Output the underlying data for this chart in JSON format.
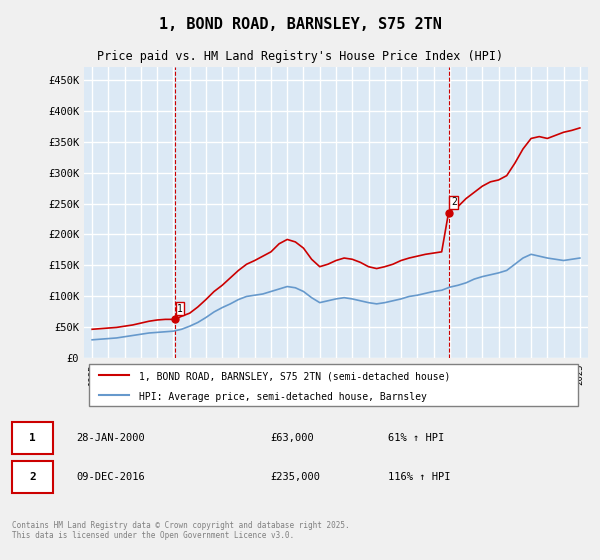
{
  "title": "1, BOND ROAD, BARNSLEY, S75 2TN",
  "subtitle": "Price paid vs. HM Land Registry's House Price Index (HPI)",
  "ylabel": "",
  "ylim": [
    0,
    470000
  ],
  "yticks": [
    0,
    50000,
    100000,
    150000,
    200000,
    250000,
    300000,
    350000,
    400000,
    450000
  ],
  "background_color": "#dce9f5",
  "plot_bg_color": "#dce9f5",
  "grid_color": "#ffffff",
  "sale1": {
    "date_num": 5.08,
    "price": 63000,
    "label": "1",
    "date_str": "28-JAN-2000"
  },
  "sale2": {
    "date_num": 21.92,
    "price": 235000,
    "label": "2",
    "date_str": "09-DEC-2016"
  },
  "legend_label_red": "1, BOND ROAD, BARNSLEY, S75 2TN (semi-detached house)",
  "legend_label_blue": "HPI: Average price, semi-detached house, Barnsley",
  "annotation1": "28-JAN-2000    £63,000        61% ↑ HPI",
  "annotation2": "09-DEC-2016    £235,000      116% ↑ HPI",
  "footer": "Contains HM Land Registry data © Crown copyright and database right 2025.\nThis data is licensed under the Open Government Licence v3.0.",
  "red_color": "#cc0000",
  "blue_color": "#6699cc",
  "vline_color": "#cc0000",
  "hpi_red_line": {
    "x": [
      1995,
      1995.5,
      1996,
      1996.5,
      1997,
      1997.5,
      1998,
      1998.5,
      1999,
      1999.5,
      2000,
      2000.08,
      2000.5,
      2001,
      2001.5,
      2002,
      2002.5,
      2003,
      2003.5,
      2004,
      2004.5,
      2005,
      2005.5,
      2006,
      2006.5,
      2007,
      2007.5,
      2008,
      2008.5,
      2009,
      2009.5,
      2010,
      2010.5,
      2011,
      2011.5,
      2012,
      2012.5,
      2013,
      2013.5,
      2014,
      2014.5,
      2015,
      2015.5,
      2016,
      2016.5,
      2016.92,
      2017,
      2017.5,
      2018,
      2018.5,
      2019,
      2019.5,
      2020,
      2020.5,
      2021,
      2021.5,
      2022,
      2022.5,
      2023,
      2023.5,
      2024,
      2024.5,
      2025
    ],
    "y": [
      47000,
      48000,
      49000,
      50000,
      52000,
      54000,
      57000,
      60000,
      62000,
      63000,
      63000,
      63000,
      68000,
      73000,
      83000,
      95000,
      108000,
      118000,
      130000,
      142000,
      152000,
      158000,
      165000,
      172000,
      185000,
      192000,
      188000,
      178000,
      160000,
      148000,
      152000,
      158000,
      162000,
      160000,
      155000,
      148000,
      145000,
      148000,
      152000,
      158000,
      162000,
      165000,
      168000,
      170000,
      172000,
      235000,
      238000,
      245000,
      258000,
      268000,
      278000,
      285000,
      288000,
      295000,
      315000,
      338000,
      355000,
      358000,
      355000,
      360000,
      365000,
      368000,
      372000
    ]
  },
  "hpi_blue_line": {
    "x": [
      1995,
      1995.5,
      1996,
      1996.5,
      1997,
      1997.5,
      1998,
      1998.5,
      1999,
      1999.5,
      2000,
      2000.5,
      2001,
      2001.5,
      2002,
      2002.5,
      2003,
      2003.5,
      2004,
      2004.5,
      2005,
      2005.5,
      2006,
      2006.5,
      2007,
      2007.5,
      2008,
      2008.5,
      2009,
      2009.5,
      2010,
      2010.5,
      2011,
      2011.5,
      2012,
      2012.5,
      2013,
      2013.5,
      2014,
      2014.5,
      2015,
      2015.5,
      2016,
      2016.5,
      2017,
      2017.5,
      2018,
      2018.5,
      2019,
      2019.5,
      2020,
      2020.5,
      2021,
      2021.5,
      2022,
      2022.5,
      2023,
      2023.5,
      2024,
      2024.5,
      2025
    ],
    "y": [
      30000,
      31000,
      32000,
      33000,
      35000,
      37000,
      39000,
      41000,
      42000,
      43000,
      44000,
      47000,
      52000,
      58000,
      66000,
      75000,
      82000,
      88000,
      95000,
      100000,
      102000,
      104000,
      108000,
      112000,
      116000,
      114000,
      108000,
      98000,
      90000,
      93000,
      96000,
      98000,
      96000,
      93000,
      90000,
      88000,
      90000,
      93000,
      96000,
      100000,
      102000,
      105000,
      108000,
      110000,
      115000,
      118000,
      122000,
      128000,
      132000,
      135000,
      138000,
      142000,
      152000,
      162000,
      168000,
      165000,
      162000,
      160000,
      158000,
      160000,
      162000
    ]
  },
  "xmin": 1994.5,
  "xmax": 2025.5,
  "xticks": [
    1995,
    1996,
    1997,
    1998,
    1999,
    2000,
    2001,
    2002,
    2003,
    2004,
    2005,
    2006,
    2007,
    2008,
    2009,
    2010,
    2011,
    2012,
    2013,
    2014,
    2015,
    2016,
    2017,
    2018,
    2019,
    2020,
    2021,
    2022,
    2023,
    2024,
    2025
  ]
}
